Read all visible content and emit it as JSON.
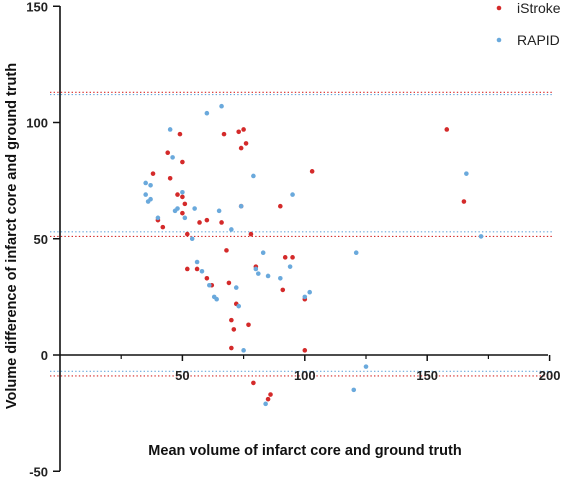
{
  "chart_data": {
    "type": "scatter",
    "xlabel": "Mean volume of infarct core and ground truth",
    "ylabel": "Volume difference of infarct core and ground truth",
    "xlim": [
      0,
      200
    ],
    "ylim": [
      -50,
      150
    ],
    "x_ticks": [
      50,
      100,
      150,
      200
    ],
    "y_ticks": [
      -50,
      0,
      50,
      100,
      150
    ],
    "x_axis_at_y": 0,
    "grid": false,
    "legend_position": "top-right",
    "colors": {
      "iStroke": "#d42a2a",
      "RAPID": "#6aa9dc"
    },
    "series": [
      {
        "name": "iStroke",
        "points": [
          [
            38,
            78
          ],
          [
            40,
            58
          ],
          [
            42,
            55
          ],
          [
            44,
            87
          ],
          [
            45,
            76
          ],
          [
            48,
            69
          ],
          [
            49,
            95
          ],
          [
            50,
            83
          ],
          [
            50,
            68
          ],
          [
            50,
            61
          ],
          [
            51,
            65
          ],
          [
            52,
            52
          ],
          [
            52,
            37
          ],
          [
            56,
            37
          ],
          [
            57,
            57
          ],
          [
            60,
            58
          ],
          [
            60,
            33
          ],
          [
            62,
            30
          ],
          [
            66,
            57
          ],
          [
            67,
            95
          ],
          [
            68,
            45
          ],
          [
            69,
            31
          ],
          [
            70,
            3
          ],
          [
            70,
            15
          ],
          [
            71,
            11
          ],
          [
            72,
            22
          ],
          [
            73,
            96
          ],
          [
            74,
            64
          ],
          [
            74,
            89
          ],
          [
            75,
            97
          ],
          [
            76,
            91
          ],
          [
            77,
            13
          ],
          [
            78,
            52
          ],
          [
            79,
            -12
          ],
          [
            80,
            38
          ],
          [
            85,
            -19
          ],
          [
            86,
            -17
          ],
          [
            90,
            64
          ],
          [
            91,
            28
          ],
          [
            92,
            42
          ],
          [
            95,
            42
          ],
          [
            100,
            2
          ],
          [
            100,
            24
          ],
          [
            103,
            79
          ],
          [
            158,
            97
          ],
          [
            165,
            66
          ]
        ]
      },
      {
        "name": "RAPID",
        "points": [
          [
            35,
            69
          ],
          [
            35,
            74
          ],
          [
            36,
            66
          ],
          [
            37,
            67
          ],
          [
            37,
            73
          ],
          [
            40,
            59
          ],
          [
            45,
            97
          ],
          [
            46,
            85
          ],
          [
            47,
            62
          ],
          [
            48,
            63
          ],
          [
            50,
            70
          ],
          [
            51,
            59
          ],
          [
            54,
            50
          ],
          [
            55,
            63
          ],
          [
            56,
            40
          ],
          [
            58,
            36
          ],
          [
            60,
            104
          ],
          [
            61,
            30
          ],
          [
            63,
            25
          ],
          [
            64,
            24
          ],
          [
            65,
            62
          ],
          [
            66,
            107
          ],
          [
            70,
            54
          ],
          [
            72,
            29
          ],
          [
            73,
            21
          ],
          [
            74,
            64
          ],
          [
            75,
            2
          ],
          [
            79,
            77
          ],
          [
            80,
            37
          ],
          [
            81,
            35
          ],
          [
            83,
            44
          ],
          [
            84,
            -21
          ],
          [
            85,
            34
          ],
          [
            90,
            33
          ],
          [
            94,
            38
          ],
          [
            95,
            69
          ],
          [
            100,
            25
          ],
          [
            102,
            27
          ],
          [
            120,
            -15
          ],
          [
            121,
            44
          ],
          [
            125,
            -5
          ],
          [
            166,
            78
          ],
          [
            172,
            51
          ]
        ]
      }
    ],
    "reference_lines": [
      {
        "series": "iStroke",
        "values": [
          113,
          51,
          -9
        ]
      },
      {
        "series": "RAPID",
        "values": [
          112,
          53,
          -7
        ]
      }
    ]
  }
}
